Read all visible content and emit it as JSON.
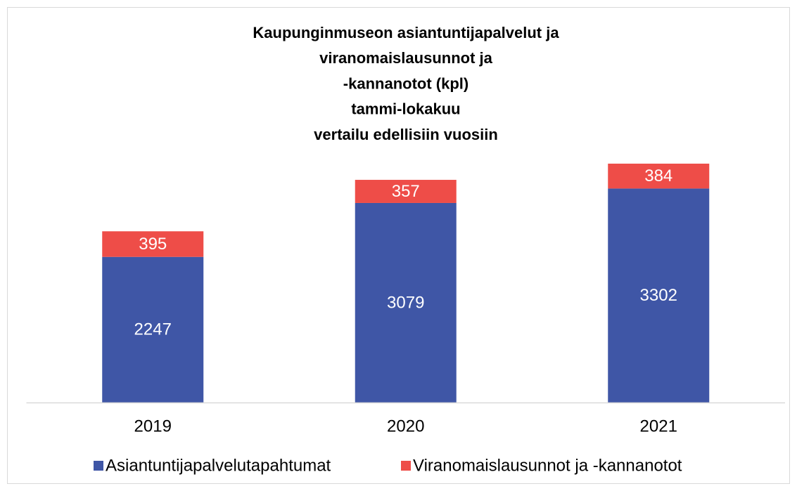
{
  "chart_data": {
    "type": "stacked_bar",
    "title": [
      "Kaupunginmuseon asiantuntijapalvelut ja",
      "viranomaislausunnot ja",
      "-kannanotot (kpl)",
      "tammi-lokakuu",
      "vertailu edellisiin vuosiin"
    ],
    "categories": [
      "2019",
      "2020",
      "2021"
    ],
    "series": [
      {
        "name": "Asiantuntijapalvelutapahtumat",
        "color": "#3f56a6",
        "values": [
          2247,
          3079,
          3302
        ]
      },
      {
        "name": "Viranomaislausunnot ja -kannanotot",
        "color": "#ee4d48",
        "values": [
          395,
          357,
          384
        ]
      }
    ],
    "ylim": [
      0,
      4000
    ],
    "legend": "bottom"
  }
}
